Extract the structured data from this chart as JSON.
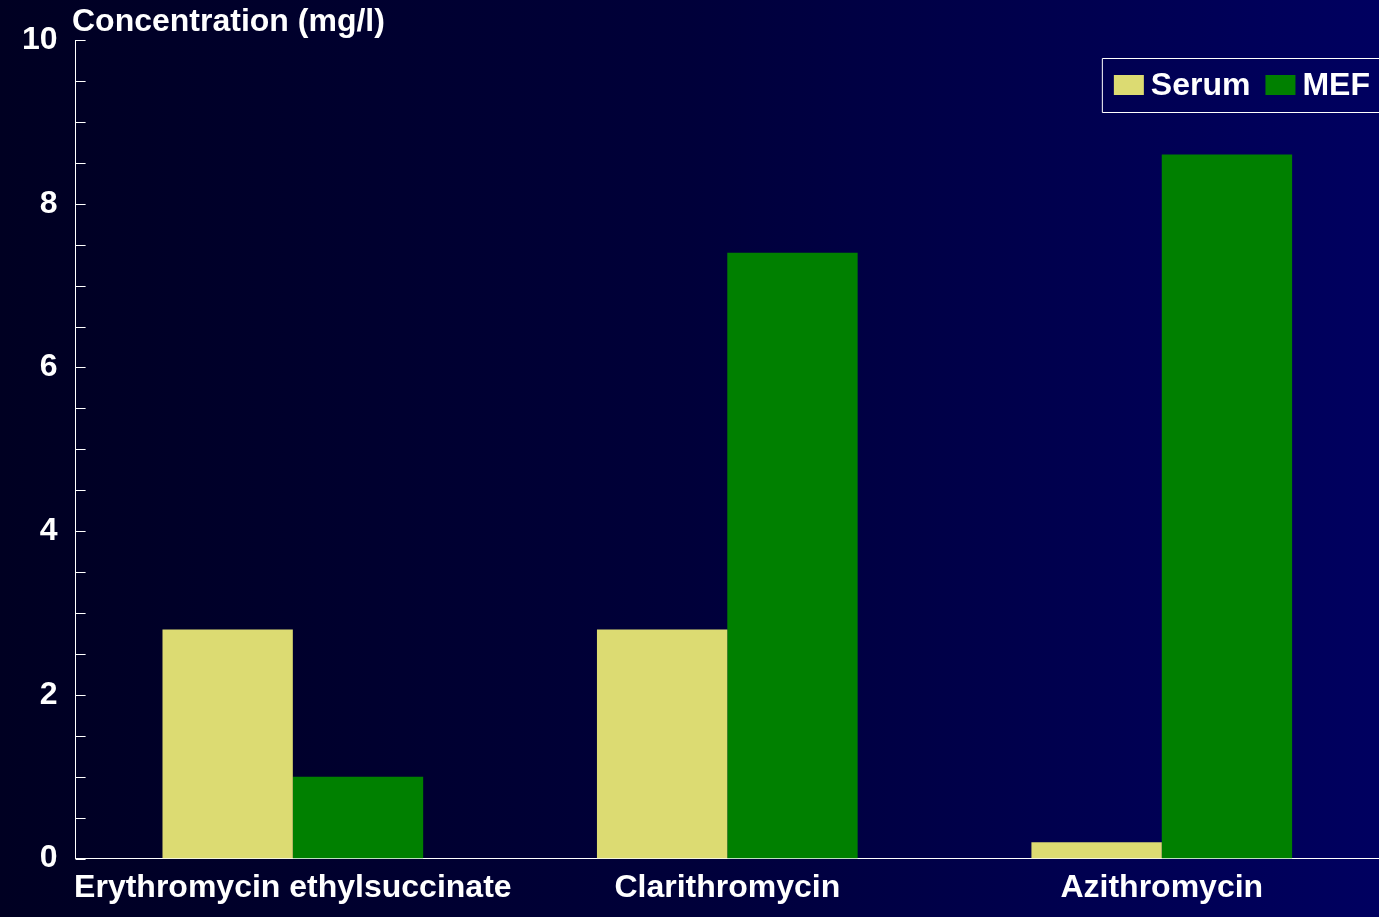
{
  "chart_data": {
    "type": "bar",
    "ylabel": "Concentration (mg/l)",
    "categories": [
      "Erythromycin ethylsuccinate",
      "Clarithromycin",
      "Azithromycin"
    ],
    "series": [
      {
        "name": "Serum",
        "color": "#dcdb72",
        "values": [
          2.8,
          2.8,
          0.2
        ]
      },
      {
        "name": "MEF",
        "color": "#008000",
        "values": [
          1.0,
          7.4,
          8.6
        ]
      }
    ],
    "ylim": [
      0,
      10
    ],
    "yticks": [
      0,
      {
        "value": 0.5,
        "label": null
      },
      {
        "value": 1,
        "label": null
      },
      {
        "value": 1.5,
        "label": null
      },
      2,
      {
        "value": 2.5,
        "label": null
      },
      {
        "value": 3,
        "label": null
      },
      {
        "value": 3.5,
        "label": null
      },
      4,
      {
        "value": 4.5,
        "label": null
      },
      {
        "value": 5,
        "label": null
      },
      {
        "value": 5.5,
        "label": null
      },
      6,
      {
        "value": 6.5,
        "label": null
      },
      {
        "value": 7,
        "label": null
      },
      {
        "value": 7.5,
        "label": null
      },
      8,
      {
        "value": 8.5,
        "label": null
      },
      {
        "value": 9,
        "label": null
      },
      {
        "value": 9.5,
        "label": null
      },
      10
    ],
    "grid": false,
    "legend": "top right"
  }
}
